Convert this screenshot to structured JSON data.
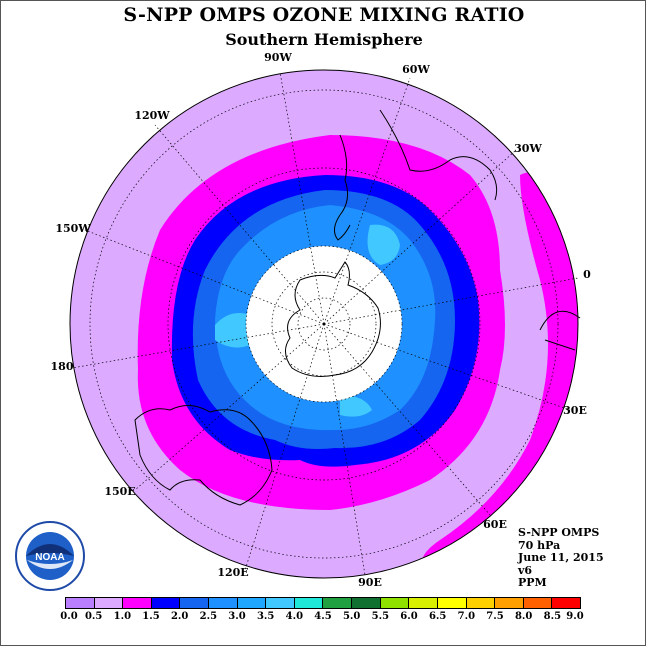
{
  "title": "S-NPP OMPS OZONE MIXING RATIO",
  "subtitle": "Southern Hemisphere",
  "longitude_labels": {
    "lon_90W": "90W",
    "lon_60W": "60W",
    "lon_120W": "120W",
    "lon_30W": "30W",
    "lon_150W": "150W",
    "lon_0": "0",
    "lon_180": "180",
    "lon_30E": "30E",
    "lon_150E": "150E",
    "lon_60E": "60E",
    "lon_120E": "120E",
    "lon_90E": "90E"
  },
  "info": {
    "instrument": "S-NPP OMPS",
    "pressure": "70 hPa",
    "date": "June 11, 2015",
    "version": "v6",
    "units": "PPM"
  },
  "logo": {
    "text": "NOAA"
  },
  "colorbar": {
    "ticks": [
      "0.0",
      "0.5",
      "1.0",
      "1.5",
      "2.0",
      "2.5",
      "3.0",
      "3.5",
      "4.0",
      "4.5",
      "5.0",
      "5.5",
      "6.0",
      "6.5",
      "7.0",
      "7.5",
      "8.0",
      "8.5",
      "9.0"
    ],
    "colors": [
      "#b97fff",
      "#dcaaff",
      "#ff00ff",
      "#0000ff",
      "#1565f0",
      "#1e90ff",
      "#1fa7ff",
      "#40c8ff",
      "#20e8d8",
      "#20a040",
      "#107030",
      "#90e000",
      "#d8f000",
      "#ffff00",
      "#ffd000",
      "#ffa000",
      "#ff6000",
      "#ff0000",
      "#a05a2c"
    ]
  },
  "map_colors": {
    "ring_0_5": "#dcaaff",
    "ring_1_0": "#ff00ff",
    "ring_1_5": "#0000ff",
    "ring_2_0": "#1565f0",
    "ring_2_5": "#1e90ff",
    "ring_3_0": "#40c8ff",
    "no_data": "#ffffff"
  }
}
